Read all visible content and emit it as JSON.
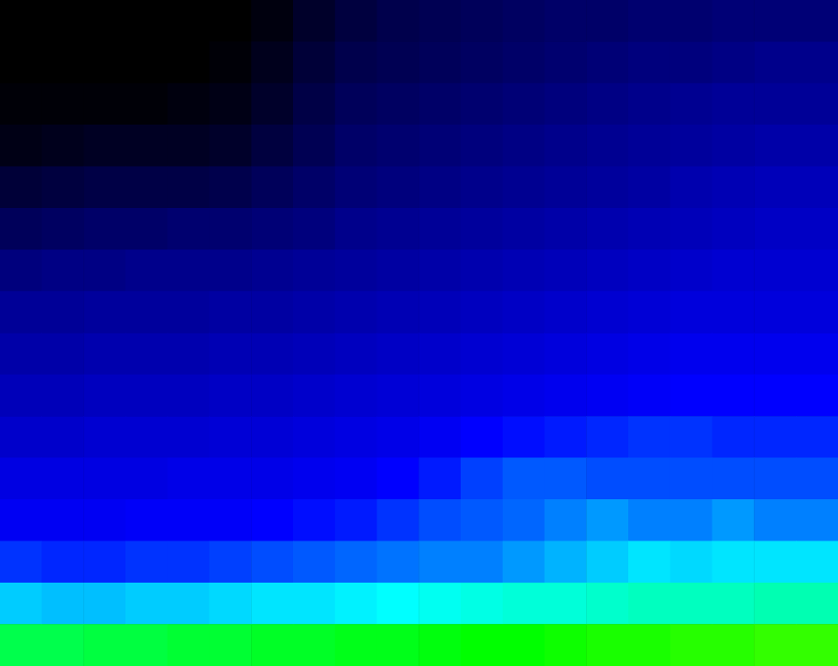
{
  "chart_data": {
    "type": "heatmap",
    "tick_labels": false,
    "zlim": [
      0,
      100
    ],
    "cells": [
      [
        0,
        0,
        0,
        0,
        0,
        0,
        2,
        6,
        9,
        11,
        12,
        13,
        14,
        15,
        15,
        16,
        16,
        17,
        17,
        17
      ],
      [
        0,
        0,
        0,
        0,
        0,
        1,
        4,
        8,
        11,
        12,
        13,
        14,
        15,
        16,
        17,
        18,
        18,
        19,
        20,
        20
      ],
      [
        1,
        1,
        1,
        1,
        2,
        3,
        6,
        10,
        13,
        14,
        15,
        16,
        17,
        18,
        19,
        20,
        21,
        22,
        22,
        22
      ],
      [
        3,
        4,
        5,
        5,
        5,
        6,
        9,
        12,
        15,
        16,
        17,
        18,
        19,
        20,
        21,
        22,
        23,
        24,
        25,
        25
      ],
      [
        8,
        9,
        10,
        10,
        10,
        11,
        13,
        15,
        17,
        18,
        19,
        20,
        21,
        22,
        23,
        24,
        26,
        27,
        28,
        28
      ],
      [
        13,
        14,
        15,
        15,
        16,
        16,
        17,
        18,
        20,
        21,
        22,
        23,
        24,
        25,
        26,
        27,
        28,
        29,
        30,
        30
      ],
      [
        18,
        19,
        19,
        20,
        20,
        20,
        21,
        22,
        23,
        24,
        25,
        26,
        27,
        28,
        29,
        30,
        31,
        32,
        32,
        32
      ],
      [
        22,
        22,
        23,
        23,
        23,
        24,
        24,
        25,
        26,
        27,
        28,
        29,
        30,
        31,
        32,
        33,
        34,
        34,
        34,
        34
      ],
      [
        25,
        25,
        26,
        26,
        26,
        27,
        27,
        28,
        29,
        30,
        31,
        32,
        33,
        34,
        35,
        36,
        37,
        37,
        37,
        37
      ],
      [
        28,
        28,
        29,
        29,
        29,
        30,
        30,
        31,
        32,
        33,
        34,
        35,
        36,
        37,
        38,
        39,
        40,
        40,
        40,
        40
      ],
      [
        31,
        31,
        32,
        32,
        32,
        33,
        33,
        34,
        35,
        36,
        38,
        40,
        41,
        42,
        43,
        44,
        44,
        43,
        43,
        43
      ],
      [
        35,
        35,
        35,
        35,
        36,
        36,
        36,
        37,
        38,
        40,
        42,
        45,
        47,
        47,
        46,
        46,
        46,
        46,
        46,
        46
      ],
      [
        38,
        38,
        38,
        39,
        39,
        39,
        40,
        41,
        42,
        44,
        46,
        47,
        48,
        50,
        52,
        50,
        50,
        52,
        50,
        50
      ],
      [
        44,
        43,
        43,
        44,
        44,
        45,
        46,
        47,
        48,
        49,
        50,
        50,
        52,
        54,
        56,
        58,
        57,
        58,
        58,
        58
      ],
      [
        56,
        55,
        55,
        56,
        56,
        57,
        58,
        58,
        59,
        60,
        61,
        62,
        63,
        63,
        64,
        65,
        65,
        65,
        66,
        66
      ],
      [
        74,
        74,
        75,
        75,
        76,
        76,
        77,
        77,
        78,
        78,
        79,
        80,
        80,
        81,
        82,
        82,
        83,
        83,
        84,
        84
      ]
    ]
  }
}
